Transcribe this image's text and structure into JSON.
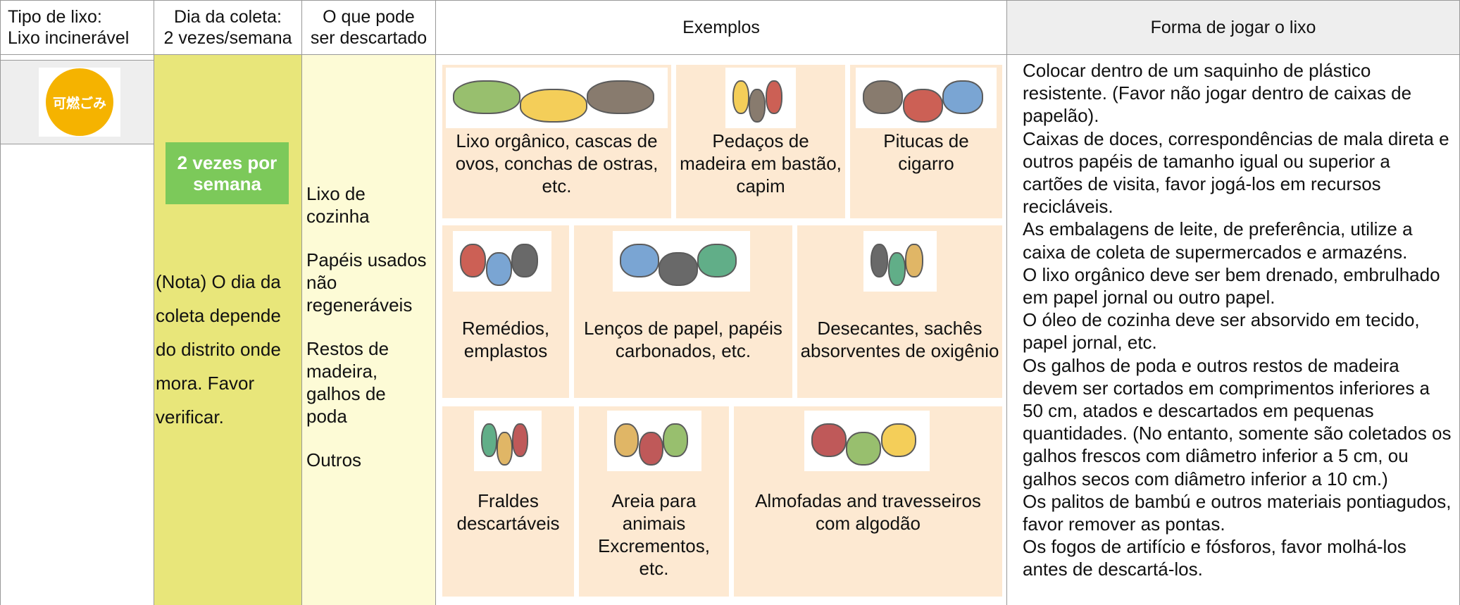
{
  "header": {
    "type": "Tipo de lixo:\nLixo incinerável",
    "day": "Dia da coleta:\n2 vezes/semana",
    "what": "O que pode\nser descartado",
    "examples": "Exemplos",
    "how": "Forma de jogar o lixo"
  },
  "badge": "可燃ごみ",
  "frequency": "2 vezes por semana",
  "note": "(Nota) O dia da coleta depende do distrito onde mora. Favor verificar.",
  "items": [
    "Lixo de cozinha",
    "Papéis usados não regeneráveis",
    "Restos de madeira, galhos de poda",
    "Outros"
  ],
  "examples": [
    "Lixo orgânico, cascas de ovos, conchas de ostras, etc.",
    "Pedaços de madeira em bastão, capim",
    "Pitucas de cigarro",
    "Remédios, emplastos",
    "Lenços de papel, papéis carbonados, etc.",
    "Desecantes, sachês absorventes de oxigênio",
    "Fraldes descartáveis",
    "Areia para animais Excrementos, etc.",
    "Almofadas and travesseiros com algodão"
  ],
  "instructions": [
    "Colocar dentro de um saquinho de plástico resistente. (Favor não jogar dentro de caixas de papelão).",
    "Caixas de doces, correspondências de mala direta e outros papéis de tamanho igual ou superior a cartões de visita, favor jogá-los em recursos recicláveis.",
    "As embalagens de leite, de preferência, utilize a caixa de coleta de supermercados e armazéns.",
    "O lixo orgânico deve ser bem drenado, embrulhado em papel jornal ou outro papel.",
    "O óleo de cozinha deve ser absorvido em tecido, papel jornal, etc.",
    "Os galhos de poda e outros restos de madeira devem ser cortados em comprimentos inferiores a 50 cm, atados e descartados em pequenas quantidades. (No entanto, somente são coletados os galhos frescos com diâmetro inferior a 5 cm, ou galhos secos com diâmetro inferior a 10 cm.)",
    "Os palitos de bambú e outros materiais pontiagudos, favor remover as pontas.",
    "Os fogos de artifício e fósforos, favor molhá-los antes de descartá-los."
  ]
}
